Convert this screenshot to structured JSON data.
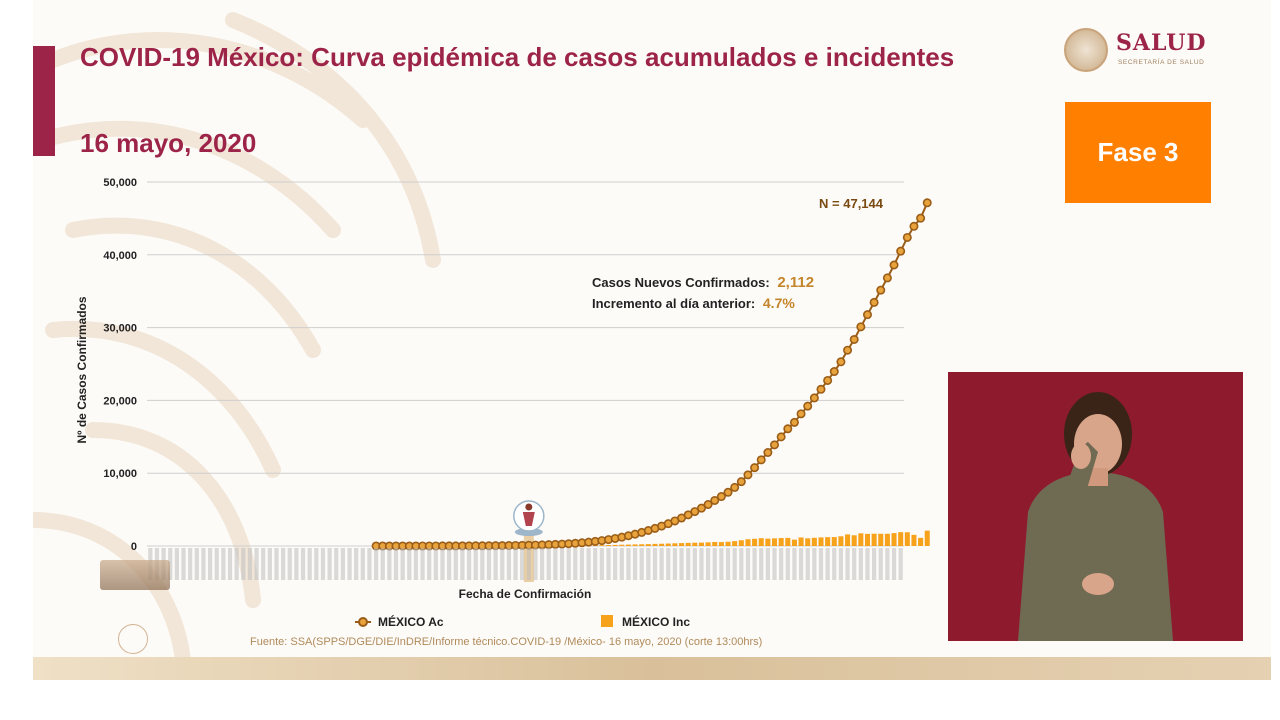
{
  "slide": {
    "title": "COVID-19 México: Curva epidémica de casos acumulados e incidentes",
    "date": "16 mayo, 2020",
    "phase_label": "Fase 3",
    "source": "Fuente: SSA(SPPS/DGE/DIE/InDRE/Informe técnico.COVID-19 /México- 16 mayo, 2020 (corte 13:00hrs)",
    "logo": {
      "name": "SALUD",
      "subtitle": "SECRETARÍA DE SALUD"
    }
  },
  "colors": {
    "title": "#9d2449",
    "accent_bar": "#9d2449",
    "phase_bg": "#ff7f00",
    "cumulative_line": "#9a5d17",
    "cumulative_marker_fill": "#e8a33d",
    "incident_bar": "#f7a21b",
    "highlight": "#c4852a",
    "logo_text": "#9d2449",
    "interpreter_bg": "#8e1a2e",
    "source_text": "#b08a5a"
  },
  "interpreter": {
    "description_icon": "sign-language-interpreter"
  },
  "chart_data": {
    "type": "line",
    "xlabel": "Fecha de Confirmación",
    "ylabel": "Nº de Casos Confirmados",
    "ylim": [
      0,
      50000
    ],
    "yticks": [
      0,
      10000,
      20000,
      30000,
      40000,
      50000
    ],
    "ytick_labels": [
      "0",
      "10,000",
      "20,000",
      "30,000",
      "40,000",
      "50,000"
    ],
    "grid": true,
    "legend_position": "bottom",
    "day_count": 114,
    "first_case_index": 34,
    "marker_index": 57,
    "marker_icon": "health-worker-figure-icon",
    "annotation_total": "N = 47,144",
    "annotation_new_label": "Casos Nuevos Confirmados:",
    "annotation_new_value": "2,112",
    "annotation_increase_label": "Incremento al día anterior:",
    "annotation_increase_value": "4.7%",
    "series": [
      {
        "name": "MÉXICO Ac",
        "kind": "line",
        "values": [
          1,
          1,
          1,
          2,
          3,
          4,
          5,
          6,
          7,
          8,
          10,
          12,
          15,
          18,
          22,
          26,
          31,
          37,
          44,
          53,
          62,
          75,
          90,
          107,
          128,
          153,
          183,
          219,
          261,
          312,
          371,
          443,
          527,
          628,
          746,
          882,
          1038,
          1213,
          1410,
          1627,
          1866,
          2129,
          2419,
          2732,
          3069,
          3441,
          3845,
          4277,
          4730,
          5195,
          5701,
          6253,
          6793,
          7378,
          8049,
          8841,
          9771,
          10761,
          11832,
          12844,
          13893,
          14989,
          16105,
          16980,
          18155,
          19212,
          20341,
          21525,
          22741,
          23968,
          25303,
          26894,
          28368,
          30106,
          31775,
          33460,
          35144,
          36826,
          38599,
          40497,
          42382,
          43915,
          45032,
          47144
        ]
      },
      {
        "name": "MÉXICO Inc",
        "kind": "bar",
        "values": [
          1,
          0,
          0,
          1,
          1,
          1,
          1,
          1,
          1,
          1,
          2,
          2,
          3,
          3,
          4,
          4,
          5,
          6,
          7,
          9,
          9,
          13,
          15,
          17,
          21,
          25,
          30,
          36,
          42,
          51,
          59,
          72,
          84,
          101,
          118,
          136,
          156,
          175,
          197,
          217,
          239,
          263,
          290,
          313,
          337,
          372,
          404,
          432,
          453,
          465,
          506,
          552,
          540,
          585,
          671,
          792,
          930,
          990,
          1071,
          1012,
          1049,
          1096,
          1116,
          875,
          1175,
          1057,
          1129,
          1184,
          1216,
          1227,
          1335,
          1591,
          1474,
          1738,
          1669,
          1685,
          1684,
          1682,
          1773,
          1898,
          1885,
          1533,
          1117,
          2112
        ]
      }
    ]
  }
}
